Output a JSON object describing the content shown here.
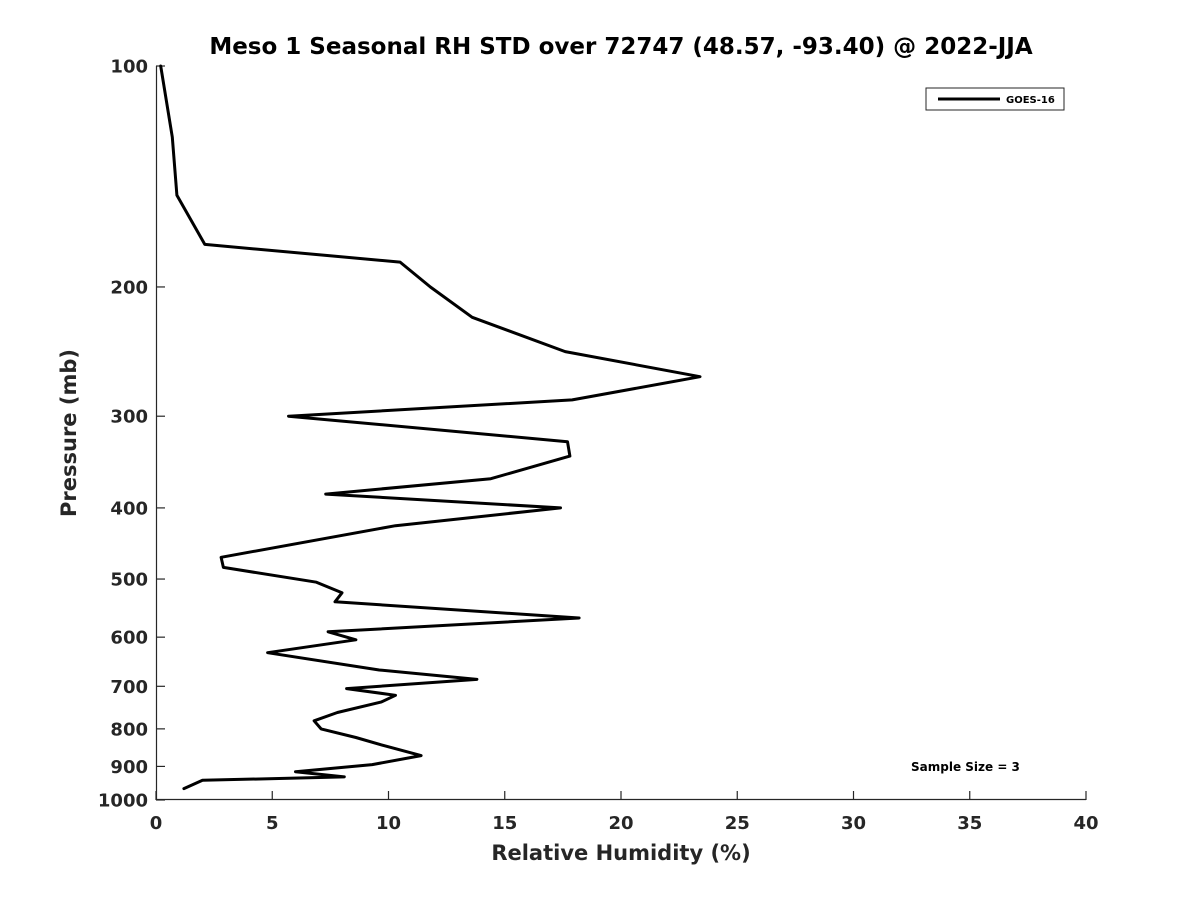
{
  "chart_data": {
    "type": "line",
    "title": "Meso 1 Seasonal RH STD over 72747 (48.57, -93.40) @ 2022-JJA",
    "xlabel": "Relative Humidity (%)",
    "ylabel": "Pressure (mb)",
    "xlim": [
      0,
      40
    ],
    "ylim": [
      100,
      1000
    ],
    "y_scale": "log",
    "y_reversed": true,
    "x_ticks": [
      0,
      5,
      10,
      15,
      20,
      25,
      30,
      35,
      40
    ],
    "y_ticks": [
      100,
      200,
      300,
      400,
      500,
      600,
      700,
      800,
      900,
      1000
    ],
    "grid": false,
    "legend_position": "top-right",
    "annotation": "Sample Size = 3",
    "series": [
      {
        "name": "GOES-16",
        "color": "#000000",
        "x": [
          0.2,
          0.7,
          0.9,
          2.1,
          10.5,
          11.8,
          13.6,
          17.6,
          23.4,
          17.9,
          5.7,
          17.7,
          17.8,
          14.4,
          7.3,
          17.4,
          10.3,
          2.8,
          2.9,
          6.9,
          8.0,
          7.7,
          18.2,
          7.4,
          8.6,
          4.8,
          9.6,
          13.8,
          8.2,
          10.3,
          9.7,
          7.8,
          6.8,
          7.1,
          8.6,
          9.8,
          11.4,
          9.3,
          6.0,
          8.1,
          2.0,
          1.2
        ],
        "y": [
          100,
          125,
          150,
          175,
          185,
          200,
          220,
          245,
          265,
          285,
          300,
          325,
          340,
          365,
          383,
          400,
          423,
          467,
          482,
          505,
          522,
          537,
          565,
          590,
          605,
          630,
          665,
          685,
          705,
          720,
          735,
          760,
          780,
          800,
          822,
          843,
          870,
          895,
          915,
          930,
          940,
          965
        ]
      }
    ]
  }
}
